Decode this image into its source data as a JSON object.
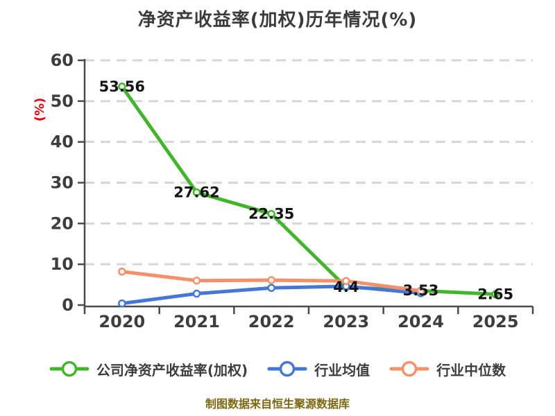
{
  "title": "净资产收益率(加权)历年情况(%)",
  "y_axis_label": "(%)",
  "source_note": "制图数据来自恒生聚源数据库",
  "colors": {
    "company": "#41b62b",
    "industry_mean": "#4577d6",
    "industry_median": "#f5906a",
    "y_axis_label_red": "#e8000d",
    "gridline": "#d6d6d6",
    "axis": "#4a4a4a",
    "tick_text": "#3d3d3d",
    "point_label": "#141414",
    "title_text": "#3b3b3b",
    "source_text": "#7d6712"
  },
  "chart_data": {
    "type": "line",
    "title": "净资产收益率(加权)历年情况(%)",
    "xlabel": "",
    "ylabel": "(%)",
    "categories": [
      "2020",
      "2021",
      "2022",
      "2023",
      "2024",
      "2025"
    ],
    "ylim": [
      0,
      60
    ],
    "ytick_interval": 10,
    "ytick_labels": [
      "0",
      "10",
      "20",
      "30",
      "40",
      "50",
      "60"
    ],
    "grid": "horizontal-dashed",
    "legend_position": "bottom",
    "series": [
      {
        "name": "公司净资产收益率(加权)",
        "color": "#41b62b",
        "values": [
          53.56,
          27.62,
          22.35,
          4.4,
          3.53,
          2.65
        ],
        "labeled": true
      },
      {
        "name": "行业均值",
        "color": "#4577d6",
        "values": [
          0.4,
          2.8,
          4.2,
          4.6,
          2.9,
          null
        ],
        "labeled": false
      },
      {
        "name": "行业中位数",
        "color": "#f5906a",
        "values": [
          8.2,
          6.0,
          6.1,
          5.9,
          3.5,
          null
        ],
        "labeled": false
      }
    ]
  }
}
